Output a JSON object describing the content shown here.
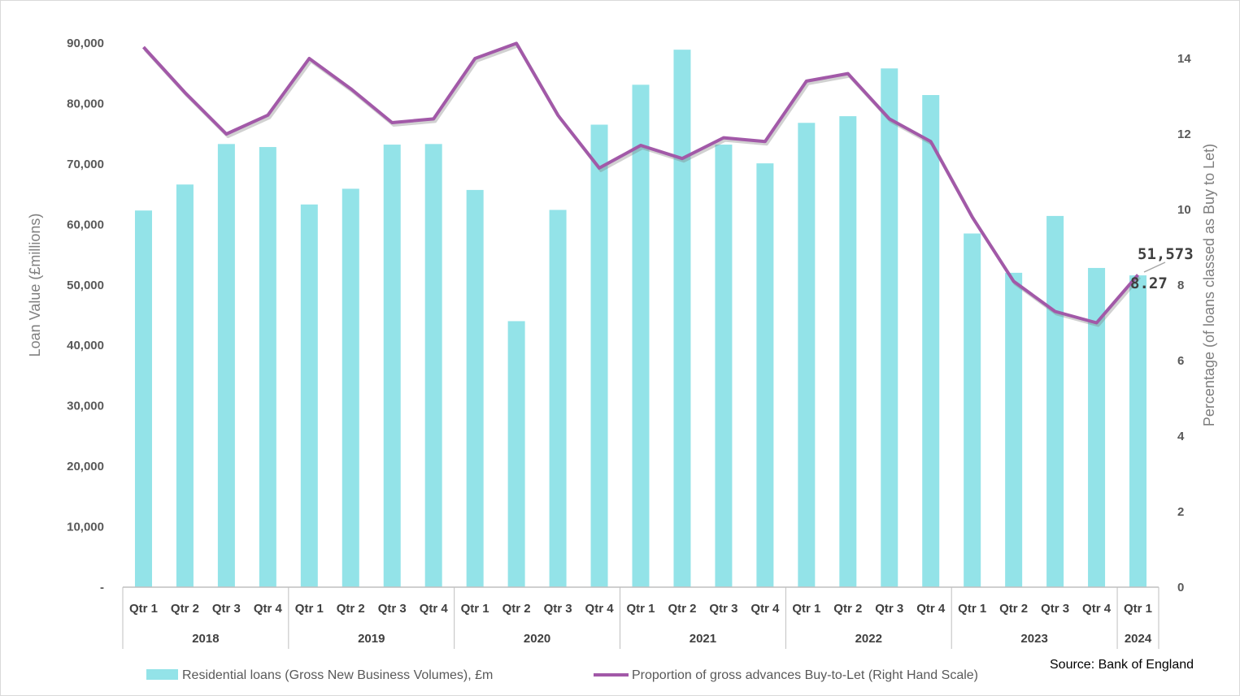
{
  "chart_data": {
    "type": "bar",
    "categories": [
      {
        "quarter": "Qtr 1",
        "year": "2018"
      },
      {
        "quarter": "Qtr 2",
        "year": "2018"
      },
      {
        "quarter": "Qtr 3",
        "year": "2018"
      },
      {
        "quarter": "Qtr 4",
        "year": "2018"
      },
      {
        "quarter": "Qtr 1",
        "year": "2019"
      },
      {
        "quarter": "Qtr 2",
        "year": "2019"
      },
      {
        "quarter": "Qtr 3",
        "year": "2019"
      },
      {
        "quarter": "Qtr 4",
        "year": "2019"
      },
      {
        "quarter": "Qtr 1",
        "year": "2020"
      },
      {
        "quarter": "Qtr 2",
        "year": "2020"
      },
      {
        "quarter": "Qtr 3",
        "year": "2020"
      },
      {
        "quarter": "Qtr 4",
        "year": "2020"
      },
      {
        "quarter": "Qtr 1",
        "year": "2021"
      },
      {
        "quarter": "Qtr 2",
        "year": "2021"
      },
      {
        "quarter": "Qtr 3",
        "year": "2021"
      },
      {
        "quarter": "Qtr 4",
        "year": "2021"
      },
      {
        "quarter": "Qtr 1",
        "year": "2022"
      },
      {
        "quarter": "Qtr 2",
        "year": "2022"
      },
      {
        "quarter": "Qtr 3",
        "year": "2022"
      },
      {
        "quarter": "Qtr 4",
        "year": "2022"
      },
      {
        "quarter": "Qtr 1",
        "year": "2023"
      },
      {
        "quarter": "Qtr 2",
        "year": "2023"
      },
      {
        "quarter": "Qtr 3",
        "year": "2023"
      },
      {
        "quarter": "Qtr 4",
        "year": "2023"
      },
      {
        "quarter": "Qtr 1",
        "year": "2024"
      }
    ],
    "years": [
      "2018",
      "2019",
      "2020",
      "2021",
      "2022",
      "2023",
      "2024"
    ],
    "series": [
      {
        "name": "Residential loans (Gross New Business Volumes),  £m",
        "kind": "bar",
        "axis": "left",
        "color": "#93e3e8",
        "values": [
          62300,
          66600,
          73300,
          72800,
          63300,
          65900,
          73200,
          73300,
          65700,
          44000,
          62400,
          76500,
          83100,
          88900,
          73200,
          70100,
          76800,
          77900,
          85800,
          81400,
          58500,
          52000,
          61400,
          52800,
          51573
        ]
      },
      {
        "name": "Proportion of gross advances Buy-to-Let (Right Hand Scale)",
        "kind": "line",
        "axis": "right",
        "color": "#a259a8",
        "values": [
          14.3,
          13.1,
          12.0,
          12.5,
          14.0,
          13.2,
          12.3,
          12.4,
          14.0,
          14.4,
          12.5,
          11.1,
          11.7,
          11.35,
          11.9,
          11.8,
          13.4,
          13.6,
          12.4,
          11.8,
          9.8,
          8.1,
          7.3,
          7.0,
          8.27
        ]
      }
    ],
    "y_left": {
      "label": "Loan Value (£millions)",
      "ylim": [
        0,
        90000
      ],
      "ticks": [
        "-",
        "10,000",
        "20,000",
        "30,000",
        "40,000",
        "50,000",
        "60,000",
        "70,000",
        "80,000",
        "90,000"
      ]
    },
    "y_right": {
      "label": "Percentage (of loans classed as Buy to Let)",
      "ylim": [
        0,
        14
      ],
      "ticks": [
        "0",
        "2",
        "4",
        "6",
        "8",
        "10",
        "12",
        "14"
      ]
    },
    "annotations": {
      "bar_last": "51,573",
      "line_last": "8.27"
    },
    "legend_position": "bottom",
    "grid": false
  },
  "source": "Source: Bank of England"
}
